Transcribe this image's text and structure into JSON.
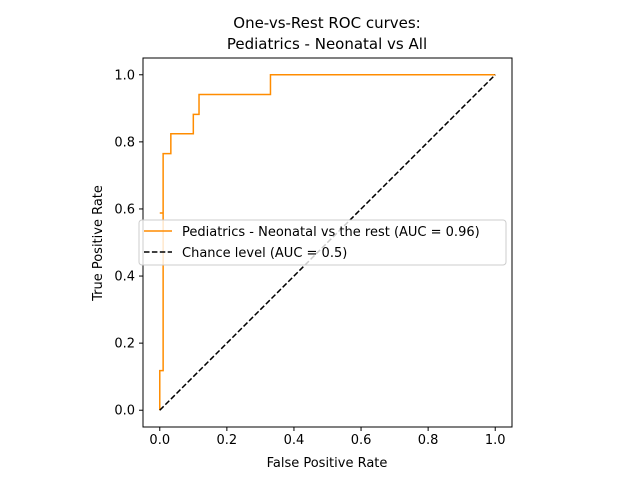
{
  "chart_data": {
    "type": "line",
    "title_lines": [
      "One-vs-Rest ROC curves:",
      "Pediatrics - Neonatal vs All"
    ],
    "xlabel": "False Positive Rate",
    "ylabel": "True Positive Rate",
    "xlim": [
      -0.05,
      1.05
    ],
    "ylim": [
      -0.05,
      1.05
    ],
    "xticks": [
      0.0,
      0.2,
      0.4,
      0.6,
      0.8,
      1.0
    ],
    "yticks": [
      0.0,
      0.2,
      0.4,
      0.6,
      0.8,
      1.0
    ],
    "xtick_labels": [
      "0.0",
      "0.2",
      "0.4",
      "0.6",
      "0.8",
      "1.0"
    ],
    "ytick_labels": [
      "0.0",
      "0.2",
      "0.4",
      "0.6",
      "0.8",
      "1.0"
    ],
    "grid": false,
    "legend_position": "center",
    "series": [
      {
        "name": "Pediatrics - Neonatal vs the rest (AUC = 0.96)",
        "color": "#ff8c00",
        "style": "solid",
        "x": [
          0.0,
          0.0,
          0.0,
          0.01,
          0.01,
          0.0,
          0.0,
          0.0,
          0.01,
          0.01,
          0.033,
          0.033,
          0.1,
          0.1,
          0.117,
          0.117,
          0.33,
          0.33,
          1.0
        ],
        "y": [
          0.0,
          0.118,
          0.118,
          0.118,
          0.588,
          0.588,
          0.588,
          0.588,
          0.588,
          0.765,
          0.765,
          0.824,
          0.824,
          0.882,
          0.882,
          0.941,
          0.941,
          1.0,
          1.0
        ]
      },
      {
        "name": "Chance level (AUC = 0.5)",
        "color": "#000000",
        "style": "dashed",
        "x": [
          0.0,
          1.0
        ],
        "y": [
          0.0,
          1.0
        ]
      }
    ]
  }
}
